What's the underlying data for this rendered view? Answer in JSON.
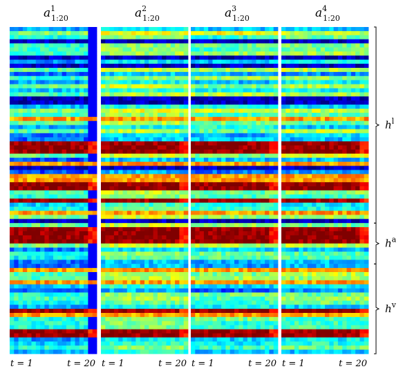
{
  "chart_data": {
    "type": "heatmap",
    "colormap": "jet",
    "panels": [
      {
        "base": "a",
        "superscript": "1",
        "subscript": "1:20",
        "x_start_label": "t = 1",
        "x_end_label": "t = 20"
      },
      {
        "base": "a",
        "superscript": "2",
        "subscript": "1:20",
        "x_start_label": "t = 1",
        "x_end_label": "t = 20"
      },
      {
        "base": "a",
        "superscript": "3",
        "subscript": "1:20",
        "x_start_label": "t = 1",
        "x_end_label": "t = 20"
      },
      {
        "base": "a",
        "superscript": "4",
        "subscript": "1:20",
        "x_start_label": "t = 1",
        "x_end_label": "t = 20"
      }
    ],
    "columns_per_panel": 20,
    "rows_total": 80,
    "row_groups": [
      {
        "base": "h",
        "superscript": "l",
        "row_start": 0,
        "row_end": 48
      },
      {
        "base": "h",
        "superscript": "a",
        "row_start": 48,
        "row_end": 58
      },
      {
        "base": "h",
        "superscript": "v",
        "row_start": 58,
        "row_end": 80
      }
    ]
  }
}
